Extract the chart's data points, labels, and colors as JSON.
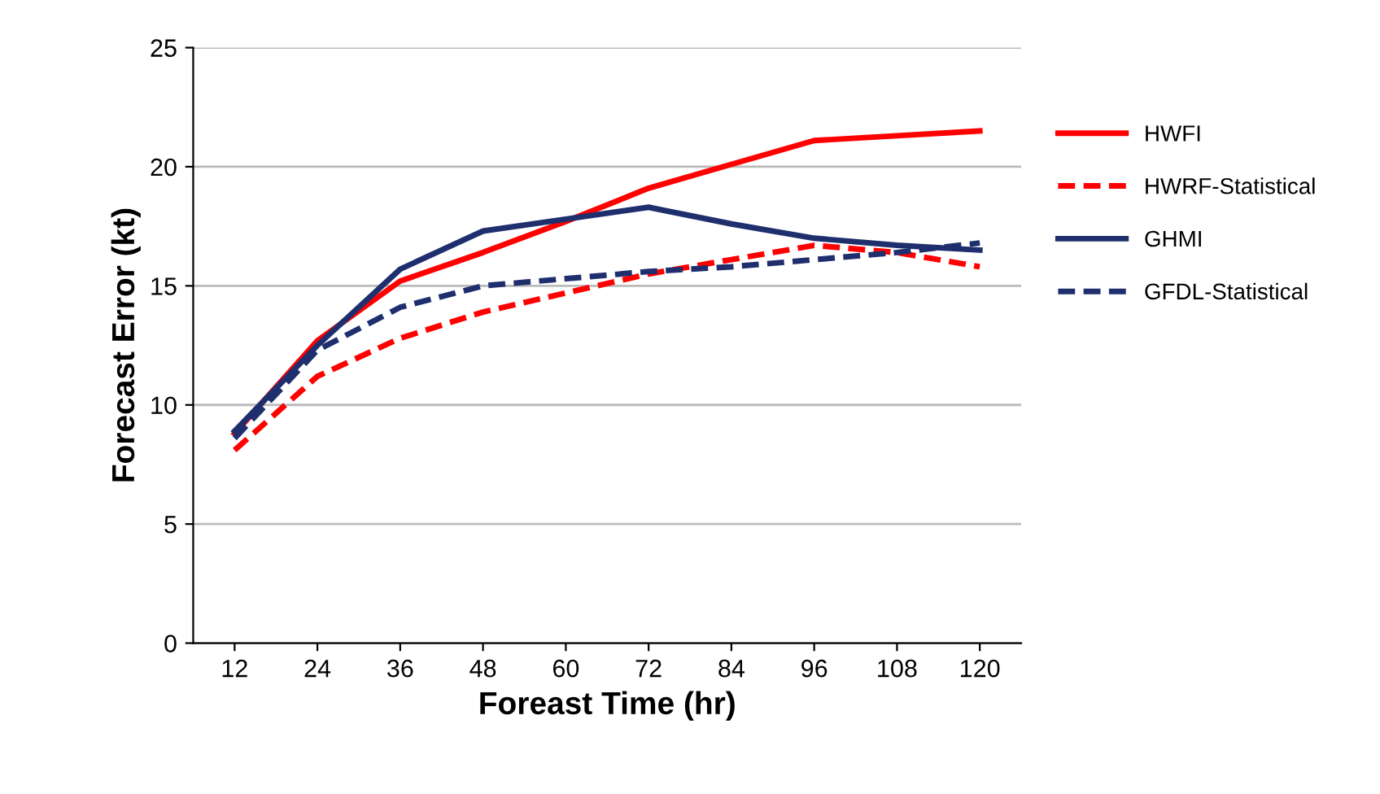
{
  "chart_data": {
    "type": "line",
    "xlabel": "Foreast Time (hr)",
    "ylabel": "Forecast Error (kt)",
    "categories": [
      "12",
      "24",
      "36",
      "48",
      "60",
      "72",
      "84",
      "96",
      "108",
      "120"
    ],
    "ylim": [
      0,
      25
    ],
    "yticks": [
      0,
      5,
      10,
      15,
      20,
      25
    ],
    "grid": "y",
    "legend": "right",
    "marker": "none",
    "series": [
      {
        "name": "HWFI",
        "color": "#ff0000",
        "line_style": "solid",
        "values": [
          8.8,
          12.7,
          15.2,
          16.4,
          17.7,
          19.1,
          20.1,
          21.1,
          21.3,
          21.5
        ]
      },
      {
        "name": "HWRF-Statistical",
        "color": "#ff0000",
        "line_style": "dashed",
        "values": [
          8.1,
          11.2,
          12.8,
          13.9,
          14.7,
          15.5,
          16.1,
          16.7,
          16.4,
          15.8
        ]
      },
      {
        "name": "GHMI",
        "color": "#1f2f6e",
        "line_style": "solid",
        "values": [
          8.9,
          12.5,
          15.7,
          17.3,
          17.8,
          18.3,
          17.6,
          17.0,
          16.7,
          16.5
        ]
      },
      {
        "name": "GFDL-Statistical",
        "color": "#1f2f6e",
        "line_style": "dashed",
        "values": [
          8.6,
          12.3,
          14.1,
          15.0,
          15.3,
          15.6,
          15.8,
          16.1,
          16.4,
          16.8
        ]
      }
    ]
  }
}
